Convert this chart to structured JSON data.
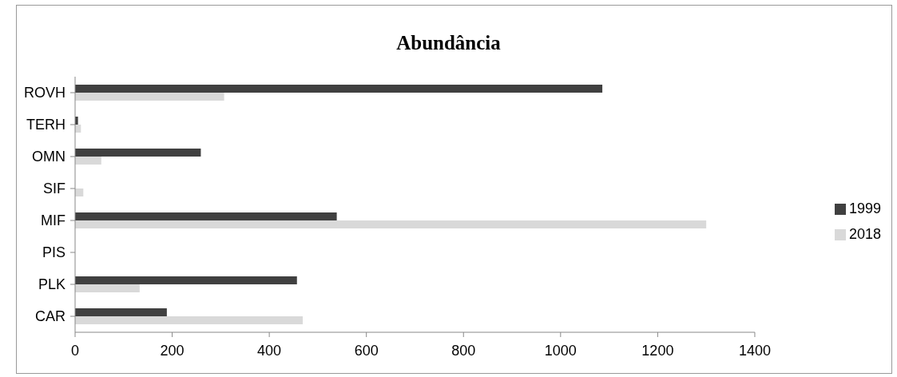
{
  "chart_data": {
    "type": "bar",
    "orientation": "horizontal",
    "title": "Abundância",
    "categories": [
      "ROVH",
      "TERH",
      "OMN",
      "SIF",
      "MIF",
      "PIS",
      "PLK",
      "CAR"
    ],
    "series": [
      {
        "name": "1999",
        "color": "#404040",
        "values": [
          1086,
          6,
          259,
          null,
          539,
          null,
          457,
          189
        ]
      },
      {
        "name": "2018",
        "color": "#d9d9d9",
        "values": [
          307,
          12,
          54,
          17,
          1300,
          null,
          133,
          469
        ]
      }
    ],
    "xlim": [
      0,
      1400
    ],
    "xticks": [
      0,
      200,
      400,
      600,
      800,
      1000,
      1200,
      1400
    ],
    "grid": false,
    "legend": "right"
  }
}
